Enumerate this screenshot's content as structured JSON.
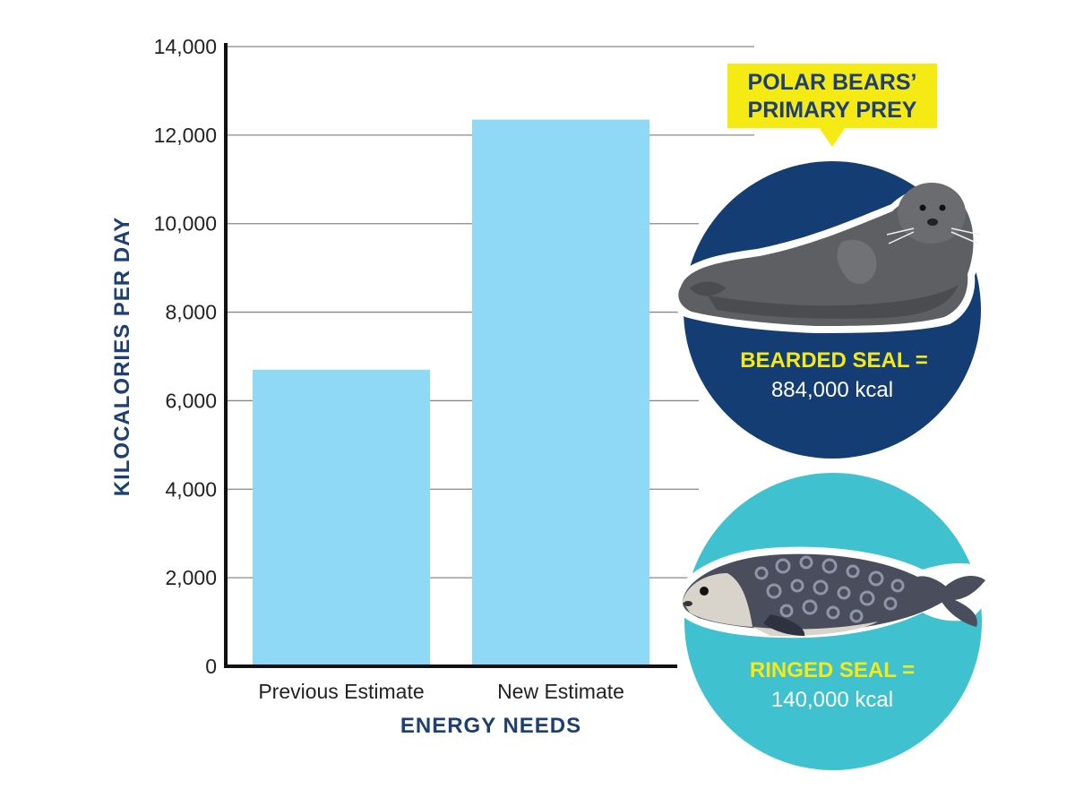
{
  "chart_data": {
    "type": "bar",
    "categories": [
      "Previous Estimate",
      "New Estimate"
    ],
    "values": [
      6700,
      12350
    ],
    "xlabel": "ENERGY NEEDS",
    "ylabel": "KILOCALORIES PER DAY",
    "ylim": [
      0,
      14000
    ],
    "yticks": [
      0,
      2000,
      4000,
      6000,
      8000,
      10000,
      12000,
      14000
    ],
    "ytick_labels": [
      "0",
      "2,000",
      "4,000",
      "6,000",
      "8,000",
      "10,000",
      "12,000",
      "14,000"
    ],
    "grid": true,
    "bar_color": "#8fd9f6"
  },
  "callout": {
    "line1": "POLAR BEARS’",
    "line2": "PRIMARY PREY",
    "background": "#f5ea14"
  },
  "prey": [
    {
      "name": "BEARDED SEAL =",
      "kcal": "884,000 kcal",
      "circle_color": "#143d73",
      "icon": "bearded-seal-icon"
    },
    {
      "name": "RINGED SEAL =",
      "kcal": "140,000 kcal",
      "circle_color": "#40c1cf",
      "icon": "ringed-seal-icon"
    }
  ],
  "colors": {
    "axis_title": "#1d3f73",
    "grid": "#888888",
    "axis": "#111111"
  }
}
